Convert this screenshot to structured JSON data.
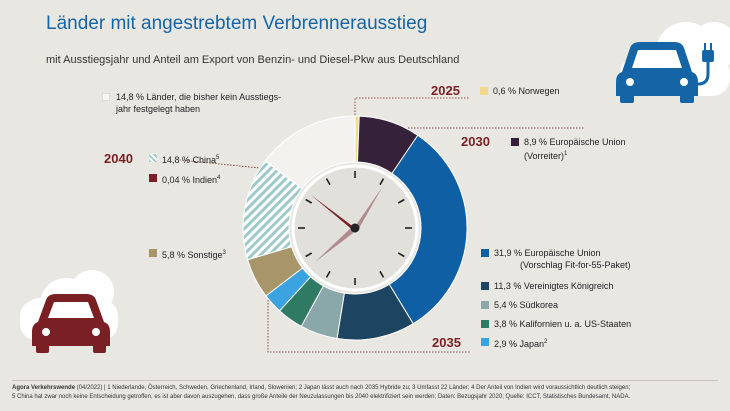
{
  "title": "Länder mit angestrebtem Verbrennerausstieg",
  "subtitle": "mit Ausstiegsjahr und Anteil am Export von Benzin- und Diesel-Pkw aus Deutschland",
  "years": {
    "y2025": "2025",
    "y2030": "2030",
    "y2035": "2035",
    "y2040": "2040"
  },
  "legend": {
    "none": "14,8 % Länder, die bisher kein Ausstiegs-",
    "none2": "jahr festgelegt haben",
    "norwegen": "0,6 % Norwegen",
    "eu_vor": "8,9 % Europäische Union",
    "eu_vor2": "(Vorreiter)",
    "eu_vor_note": "1",
    "eu_fit": "31,9 % Europäische Union",
    "eu_fit2": "(Vorschlag Fit-for-55-Paket)",
    "uk": "11,3 %  Vereinigtes Königreich",
    "kr": "5,4 % Südkorea",
    "ca": "3,8 %  Kalifornien u. a. US-Staaten",
    "jp": "2,9 %  Japan",
    "jp_note": "2",
    "sonst": "5,8 % Sonstige",
    "sonst_note": "3",
    "indien": "0,04 % Indien",
    "indien_note": "4",
    "china": "14,8 % China",
    "china_note": "5"
  },
  "footer": {
    "source": "Agora Verkehrswende",
    "text1": " (04/2022) | 1 Niederlande, Österreich, Schweden, Griechenland, Irland, Slowenien; 2 Japan lässt auch nach 2035 Hybride zu; 3 Umfasst 22 Länder; 4 Der Anteil von Indien wird voraussichtlich deutlich steigen;",
    "text2": "5 China hat zwar noch keine Entscheidung getroffen, es ist aber davon auszugehen, dass große Anteile der Neuzulassungen bis 2040 elektrifiziert sein werden; Daten: Bezugsjahr 2020; Quelle: ICCT, Statistisches Bundesamt, NADA."
  },
  "colors": {
    "norwegen": "#f0d98c",
    "eu_vor": "#35213a",
    "eu_fit": "#0f5fa4",
    "uk": "#1d4461",
    "kr": "#8aa7a9",
    "ca": "#2f7a63",
    "jp": "#3aa3e0",
    "sonst": "#a8966a",
    "china": "#9ec9c9",
    "indien": "#7a1f24",
    "none": "#f3f2ef",
    "accent": "#7a1f24",
    "title": "#1565a6"
  },
  "chart_data": {
    "type": "pie",
    "title": "Länder mit angestrebtem Verbrennerausstieg",
    "subtitle": "mit Ausstiegsjahr und Anteil am Export von Benzin- und Diesel-Pkw aus Deutschland",
    "unit": "%",
    "slices": [
      {
        "label": "Norwegen",
        "value": 0.6,
        "year": "2025",
        "color": "#f0d98c"
      },
      {
        "label": "Europäische Union (Vorreiter)",
        "value": 8.9,
        "year": "2030",
        "color": "#35213a"
      },
      {
        "label": "Europäische Union (Vorschlag Fit-for-55-Paket)",
        "value": 31.9,
        "year": "2035",
        "color": "#0f5fa4"
      },
      {
        "label": "Vereinigtes Königreich",
        "value": 11.3,
        "year": "2035",
        "color": "#1d4461"
      },
      {
        "label": "Südkorea",
        "value": 5.4,
        "year": "2035",
        "color": "#8aa7a9"
      },
      {
        "label": "Kalifornien u. a. US-Staaten",
        "value": 3.8,
        "year": "2035",
        "color": "#2f7a63"
      },
      {
        "label": "Japan",
        "value": 2.9,
        "year": "2035",
        "color": "#3aa3e0"
      },
      {
        "label": "Sonstige",
        "value": 5.8,
        "year": "2040",
        "color": "#a8966a"
      },
      {
        "label": "China",
        "value": 14.8,
        "year": "2040",
        "color": "#9ec9c9",
        "hatched": true
      },
      {
        "label": "Indien",
        "value": 0.04,
        "year": "2040",
        "color": "#7a1f24"
      },
      {
        "label": "Länder, die bisher kein Ausstiegsjahr festgelegt haben",
        "value": 14.8,
        "year": "",
        "color": "#f3f2ef"
      }
    ]
  }
}
